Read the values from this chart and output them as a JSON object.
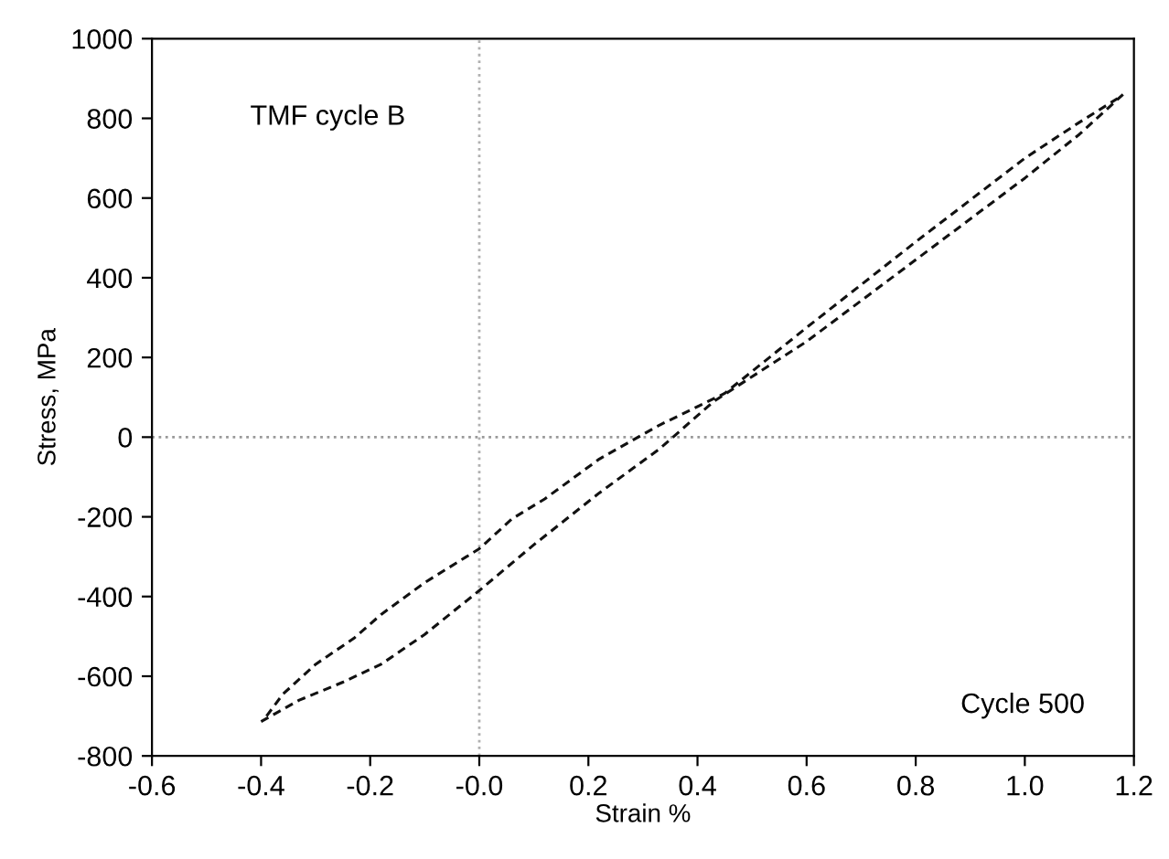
{
  "chart_data": {
    "type": "line",
    "xlabel": "Strain %",
    "ylabel": "Stress, MPa",
    "annotations": [
      "TMF cycle B",
      "Cycle 500"
    ],
    "xlim": [
      -0.6,
      1.2
    ],
    "ylim": [
      -800,
      1000
    ],
    "xticks": [
      -0.6,
      -0.4,
      -0.2,
      {
        "value": 0,
        "label": "-0.0"
      },
      0.2,
      0.4,
      0.6,
      0.8,
      {
        "value": 1,
        "label": "1.0"
      },
      1.2
    ],
    "yticks": [
      -800,
      -600,
      -400,
      -200,
      0,
      200,
      400,
      600,
      800,
      1000
    ],
    "grid": false,
    "legend": false,
    "marker": "none",
    "line_style": "dashed",
    "ref_lines": [
      {
        "axis": "x",
        "value": 0,
        "color": "#b0b0b0",
        "line_style": "dotted"
      },
      {
        "axis": "y",
        "value": 0,
        "color": "#999999",
        "line_style": "dotted"
      }
    ],
    "series": [
      {
        "color": "#111111",
        "x": [
          -0.4,
          -0.33,
          -0.25,
          -0.18,
          -0.1,
          0,
          0.1,
          0.22,
          0.33,
          0.43,
          0.6,
          0.8,
          1.0,
          1.1,
          1.18
        ],
        "values": [
          -714,
          -660,
          -615,
          -570,
          -495,
          -385,
          -270,
          -140,
          -30,
          90,
          240,
          445,
          650,
          760,
          860
        ]
      },
      {
        "color": "#111111",
        "x": [
          -0.39,
          -0.36,
          -0.3,
          -0.23,
          -0.18,
          -0.1,
          0,
          0.06,
          0.12,
          0.22,
          0.33,
          0.45,
          0.6,
          0.8,
          1.0,
          1.1,
          1.17
        ],
        "values": [
          -700,
          -645,
          -570,
          -505,
          -445,
          -365,
          -280,
          -205,
          -155,
          -55,
          30,
          110,
          275,
          490,
          700,
          790,
          850
        ]
      }
    ]
  }
}
